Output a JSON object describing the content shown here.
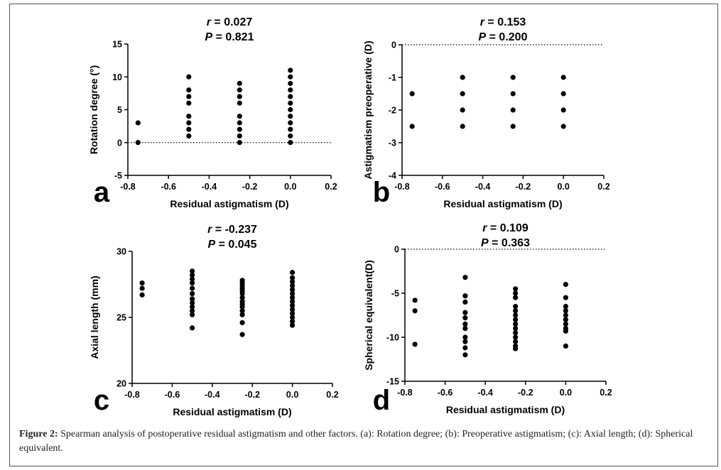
{
  "figure_caption": {
    "label": "Figure 2:",
    "text": "Spearman analysis of postoperative residual astigmatism and other factors. (a): Rotation degree; (b): Preoperative astigmatism; (c): Axial length; (d): Spherical equivalent."
  },
  "chart_data": [
    {
      "panel": "a",
      "type": "scatter",
      "r_label": "r",
      "r_value": " = 0.027",
      "p_label": "P",
      "p_value": " = 0.821",
      "xlabel": "Residual astigmatism (D)",
      "ylabel": "Rotation degree (°)",
      "xlim": [
        -0.8,
        0.2
      ],
      "ylim": [
        -5,
        15
      ],
      "xticks": [
        -0.8,
        -0.6,
        -0.4,
        -0.2,
        0.0,
        0.2
      ],
      "yticks": [
        -5,
        0,
        5,
        10,
        15
      ],
      "xtick_labels": [
        "-0.8",
        "-0.6",
        "-0.4",
        "-0.2",
        "0.0",
        "0.2"
      ],
      "ytick_labels": [
        "-5",
        "0",
        "5",
        "10",
        "15"
      ],
      "reference_line_y": 0,
      "points": [
        [
          -0.75,
          0
        ],
        [
          -0.75,
          3
        ],
        [
          -0.5,
          1
        ],
        [
          -0.5,
          2
        ],
        [
          -0.5,
          3
        ],
        [
          -0.5,
          4
        ],
        [
          -0.5,
          6
        ],
        [
          -0.5,
          7
        ],
        [
          -0.5,
          8
        ],
        [
          -0.5,
          10
        ],
        [
          -0.25,
          0
        ],
        [
          -0.25,
          1
        ],
        [
          -0.25,
          2
        ],
        [
          -0.25,
          3
        ],
        [
          -0.25,
          4
        ],
        [
          -0.25,
          6
        ],
        [
          -0.25,
          7
        ],
        [
          -0.25,
          8
        ],
        [
          -0.25,
          9
        ],
        [
          0.0,
          0
        ],
        [
          0.0,
          1
        ],
        [
          0.0,
          2
        ],
        [
          0.0,
          3
        ],
        [
          0.0,
          4
        ],
        [
          0.0,
          5
        ],
        [
          0.0,
          6
        ],
        [
          0.0,
          7
        ],
        [
          0.0,
          8
        ],
        [
          0.0,
          9
        ],
        [
          0.0,
          10
        ],
        [
          0.0,
          11
        ]
      ]
    },
    {
      "panel": "b",
      "type": "scatter",
      "r_label": "r",
      "r_value": " = 0.153",
      "p_label": "P",
      "p_value": " = 0.200",
      "xlabel": "Residual astigmatism (D)",
      "ylabel": "Astigmatism preoperative (D)",
      "xlim": [
        -0.8,
        0.2
      ],
      "ylim": [
        -4,
        0
      ],
      "xticks": [
        -0.8,
        -0.6,
        -0.4,
        -0.2,
        0.0,
        0.2
      ],
      "yticks": [
        -4,
        -3,
        -2,
        -1,
        0
      ],
      "xtick_labels": [
        "-0.8",
        "-0.6",
        "-0.4",
        "-0.2",
        "0.0",
        "0.2"
      ],
      "ytick_labels": [
        "-4",
        "-3",
        "-2",
        "-1",
        "0"
      ],
      "reference_line_y": 0,
      "points": [
        [
          -0.75,
          -1.5
        ],
        [
          -0.75,
          -2.5
        ],
        [
          -0.5,
          -1.0
        ],
        [
          -0.5,
          -1.5
        ],
        [
          -0.5,
          -2.0
        ],
        [
          -0.5,
          -2.5
        ],
        [
          -0.25,
          -1.0
        ],
        [
          -0.25,
          -1.5
        ],
        [
          -0.25,
          -2.0
        ],
        [
          -0.25,
          -2.5
        ],
        [
          0.0,
          -1.0
        ],
        [
          0.0,
          -1.5
        ],
        [
          0.0,
          -2.0
        ],
        [
          0.0,
          -2.5
        ]
      ]
    },
    {
      "panel": "c",
      "type": "scatter",
      "r_label": "r",
      "r_value": " = -0.237",
      "p_label": "P",
      "p_value": " = 0.045",
      "xlabel": "Residual astigmatism (D)",
      "ylabel": "Axial length (mm)",
      "xlim": [
        -0.8,
        0.2
      ],
      "ylim": [
        20,
        30
      ],
      "xticks": [
        -0.8,
        -0.6,
        -0.4,
        -0.2,
        0.0,
        0.2
      ],
      "yticks": [
        20,
        25,
        30
      ],
      "xtick_labels": [
        "-0.8",
        "-0.6",
        "-0.4",
        "-0.2",
        "0.0",
        "0.2"
      ],
      "ytick_labels": [
        "20",
        "25",
        "30"
      ],
      "reference_line_y": null,
      "points": [
        [
          -0.75,
          26.7
        ],
        [
          -0.75,
          27.2
        ],
        [
          -0.75,
          27.6
        ],
        [
          -0.5,
          24.2
        ],
        [
          -0.5,
          25.2
        ],
        [
          -0.5,
          25.5
        ],
        [
          -0.5,
          25.8
        ],
        [
          -0.5,
          26.1
        ],
        [
          -0.5,
          26.4
        ],
        [
          -0.5,
          26.8
        ],
        [
          -0.5,
          27.2
        ],
        [
          -0.5,
          27.6
        ],
        [
          -0.5,
          27.9
        ],
        [
          -0.5,
          28.2
        ],
        [
          -0.5,
          28.5
        ],
        [
          -0.25,
          23.7
        ],
        [
          -0.25,
          24.6
        ],
        [
          -0.25,
          25.2
        ],
        [
          -0.25,
          25.5
        ],
        [
          -0.25,
          25.8
        ],
        [
          -0.25,
          26.0
        ],
        [
          -0.25,
          26.2
        ],
        [
          -0.25,
          26.5
        ],
        [
          -0.25,
          26.8
        ],
        [
          -0.25,
          27.0
        ],
        [
          -0.25,
          27.2
        ],
        [
          -0.25,
          27.4
        ],
        [
          -0.25,
          27.6
        ],
        [
          -0.25,
          27.8
        ],
        [
          0.0,
          24.4
        ],
        [
          0.0,
          24.7
        ],
        [
          0.0,
          25.0
        ],
        [
          0.0,
          25.3
        ],
        [
          0.0,
          25.6
        ],
        [
          0.0,
          25.9
        ],
        [
          0.0,
          26.2
        ],
        [
          0.0,
          26.5
        ],
        [
          0.0,
          26.8
        ],
        [
          0.0,
          27.1
        ],
        [
          0.0,
          27.4
        ],
        [
          0.0,
          27.7
        ],
        [
          0.0,
          28.0
        ],
        [
          0.0,
          28.4
        ]
      ]
    },
    {
      "panel": "d",
      "type": "scatter",
      "r_label": "r",
      "r_value": " = 0.109",
      "p_label": "P",
      "p_value": " = 0.363",
      "xlabel": "Residual astigmatism (D)",
      "ylabel": "Spherical equivalent(D)",
      "xlim": [
        -0.8,
        0.2
      ],
      "ylim": [
        -15,
        0
      ],
      "xticks": [
        -0.8,
        -0.6,
        -0.4,
        -0.2,
        0.0,
        0.2
      ],
      "yticks": [
        -15,
        -10,
        -5,
        0
      ],
      "xtick_labels": [
        "-0.8",
        "-0.6",
        "-0.4",
        "-0.2",
        "0.0",
        "0.2"
      ],
      "ytick_labels": [
        "-15",
        "-10",
        "-5",
        "0"
      ],
      "reference_line_y": 0,
      "points": [
        [
          -0.75,
          -5.8
        ],
        [
          -0.75,
          -7.0
        ],
        [
          -0.75,
          -10.8
        ],
        [
          -0.5,
          -3.2
        ],
        [
          -0.5,
          -5.3
        ],
        [
          -0.5,
          -6.0
        ],
        [
          -0.5,
          -7.2
        ],
        [
          -0.5,
          -7.8
        ],
        [
          -0.5,
          -8.5
        ],
        [
          -0.5,
          -9.0
        ],
        [
          -0.5,
          -10.0
        ],
        [
          -0.5,
          -10.5
        ],
        [
          -0.5,
          -11.2
        ],
        [
          -0.5,
          -12.0
        ],
        [
          -0.25,
          -4.5
        ],
        [
          -0.25,
          -5.0
        ],
        [
          -0.25,
          -5.5
        ],
        [
          -0.25,
          -6.5
        ],
        [
          -0.25,
          -7.0
        ],
        [
          -0.25,
          -7.5
        ],
        [
          -0.25,
          -8.0
        ],
        [
          -0.25,
          -8.5
        ],
        [
          -0.25,
          -9.0
        ],
        [
          -0.25,
          -9.5
        ],
        [
          -0.25,
          -10.0
        ],
        [
          -0.25,
          -10.5
        ],
        [
          -0.25,
          -11.0
        ],
        [
          -0.25,
          -11.3
        ],
        [
          0.0,
          -4.0
        ],
        [
          0.0,
          -5.5
        ],
        [
          0.0,
          -6.5
        ],
        [
          0.0,
          -7.0
        ],
        [
          0.0,
          -7.5
        ],
        [
          0.0,
          -8.0
        ],
        [
          0.0,
          -8.5
        ],
        [
          0.0,
          -9.0
        ],
        [
          0.0,
          -9.3
        ],
        [
          0.0,
          -11.0
        ]
      ]
    }
  ]
}
